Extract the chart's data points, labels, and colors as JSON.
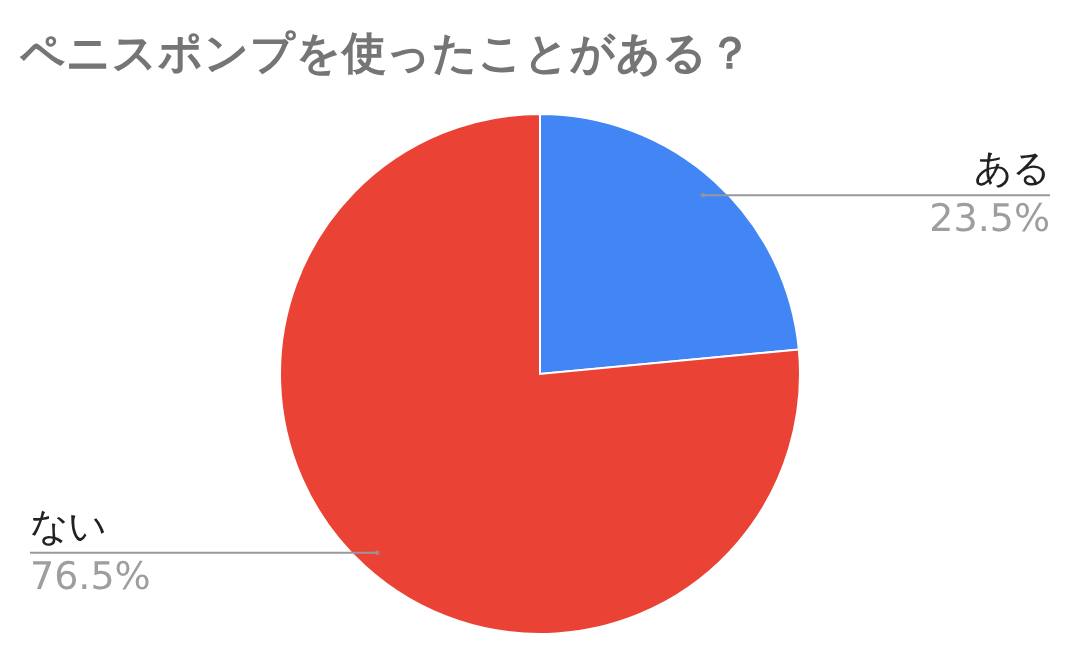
{
  "chart_data": {
    "type": "pie",
    "title": "ペニスポンプを使ったことがある？",
    "categories": [
      "ある",
      "ない"
    ],
    "values": [
      23.5,
      76.5
    ],
    "colors": [
      "#4285f4",
      "#ea4335"
    ],
    "value_labels": [
      "23.5%",
      "76.5%"
    ]
  }
}
